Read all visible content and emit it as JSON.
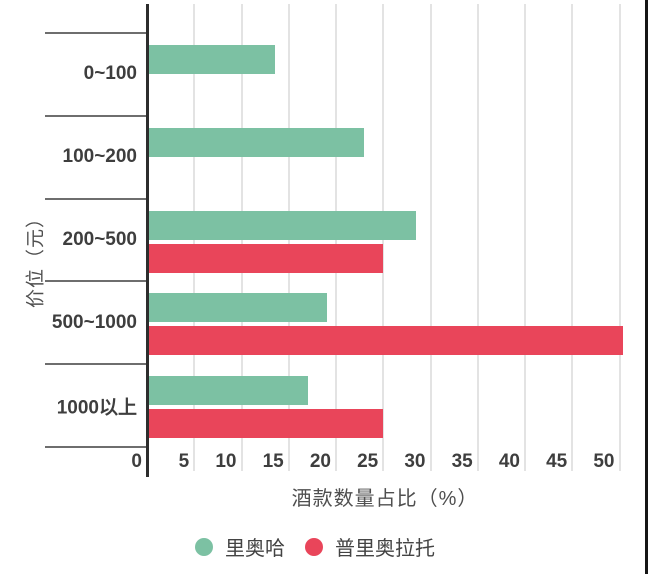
{
  "chart_data": {
    "type": "bar",
    "orientation": "horizontal",
    "title": "",
    "categories": [
      "0~100",
      "100~200",
      "200~500",
      "500~1000",
      "1000以上"
    ],
    "series": [
      {
        "name": "里奥哈",
        "color": "#7cc1a3",
        "values": [
          13.5,
          23,
          28.5,
          19,
          17
        ]
      },
      {
        "name": "普里奥拉托",
        "color": "#e9455a",
        "values": [
          null,
          null,
          25,
          50.4,
          25
        ]
      }
    ],
    "xlabel": "酒款数量占比（%）",
    "ylabel": "价位（元）",
    "xticks": [
      0,
      5,
      10,
      15,
      20,
      25,
      30,
      35,
      40,
      45,
      50
    ],
    "xlim": [
      0,
      52.9
    ],
    "grid": true,
    "legend_position": "bottom"
  },
  "colors": {
    "bar_green": "#7cc1a3",
    "bar_red": "#e9455a",
    "axis_line": "#2d2d2d",
    "gridline": "#e3e3e3",
    "boundary_tick": "#6e6e6e",
    "label_text": "#3e3e3e",
    "muted_text": "#4f4f4f",
    "page_edge": "#161616"
  }
}
